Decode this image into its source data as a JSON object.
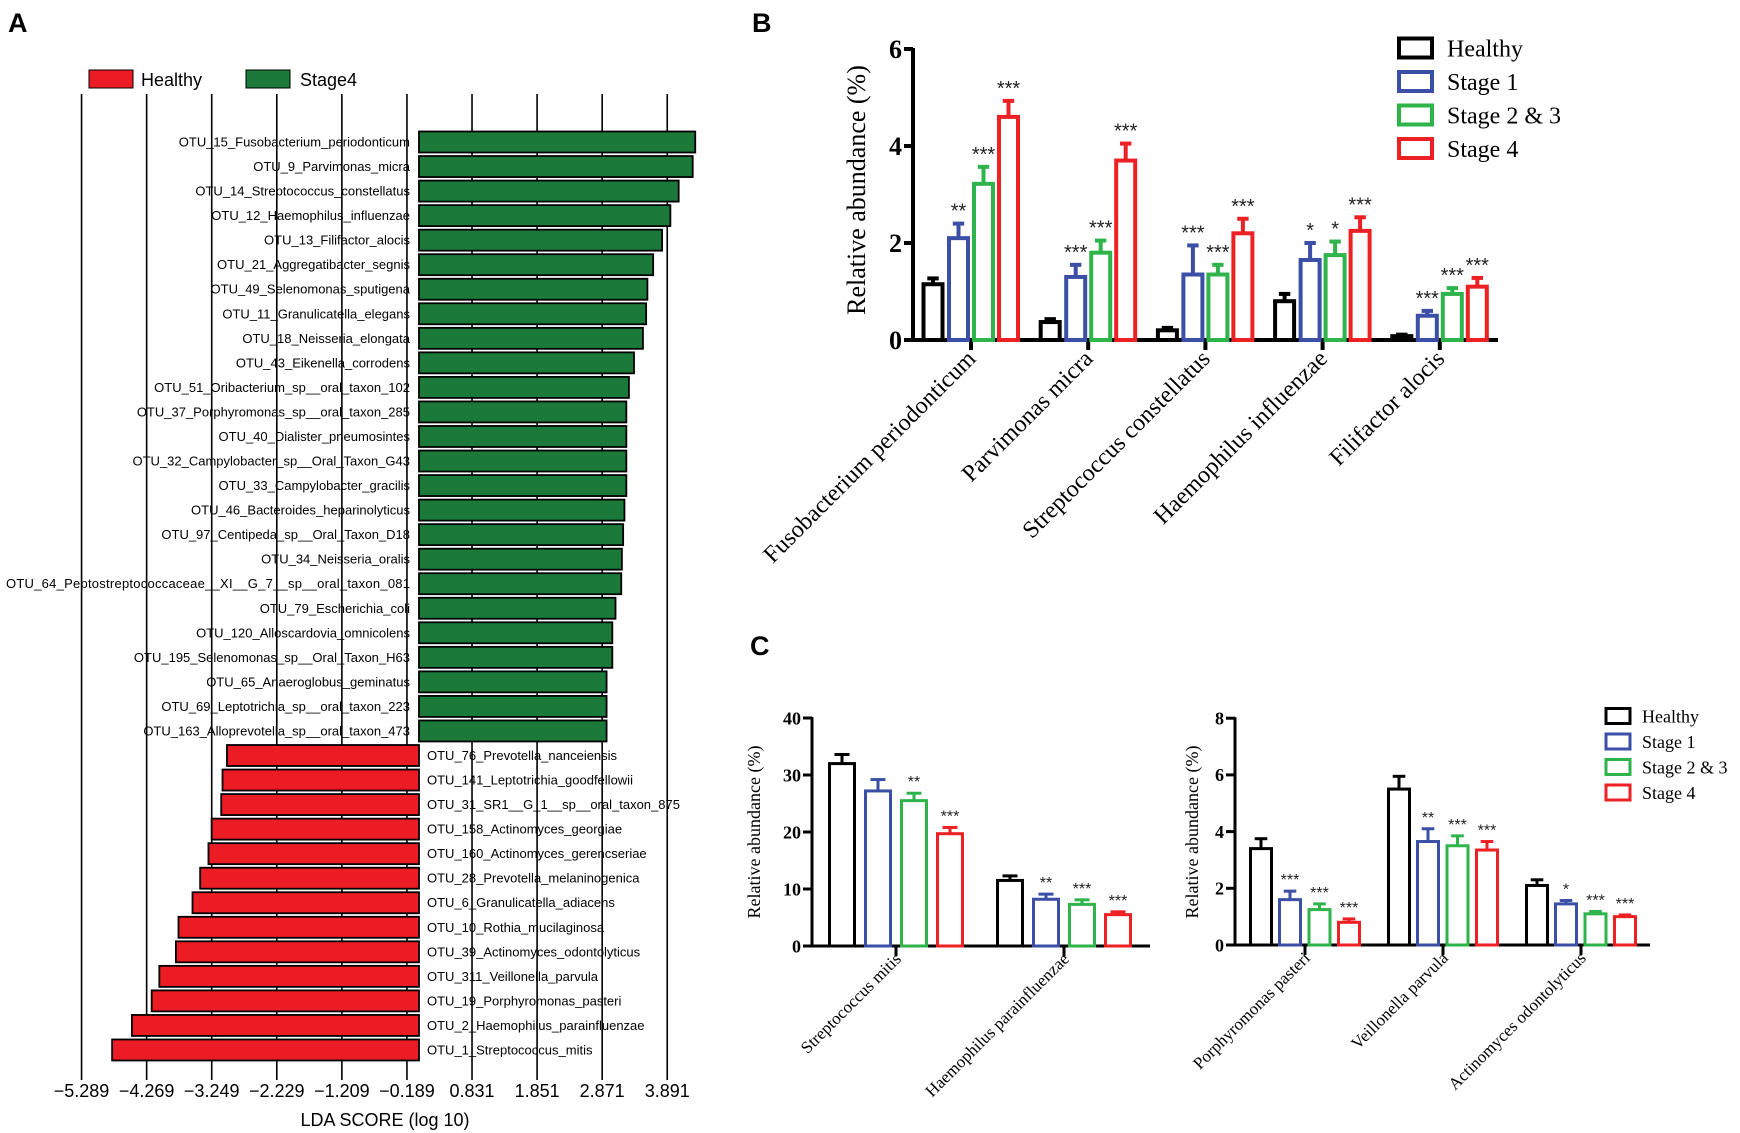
{
  "panels": {
    "a": "A",
    "b": "B",
    "c": "C"
  },
  "colors": {
    "healthy": "#000000",
    "stage1": "#3b4fa6",
    "stage23": "#2fb34b",
    "stage4": "#ed2024",
    "lefse_red": "#ec1c24",
    "lefse_green": "#1b7a3a"
  },
  "chart_data": [
    {
      "panel": "A",
      "type": "bar",
      "orientation": "horizontal",
      "xlabel": "LDA SCORE (log 10)",
      "xticks": [
        "−5.289",
        "−4.269",
        "−3.249",
        "−2.229",
        "−1.209",
        "−0.189",
        "0.831",
        "1.851",
        "2.871",
        "3.891"
      ],
      "xtick_values": [
        -5.289,
        -4.269,
        -3.249,
        -2.229,
        -1.209,
        -0.189,
        0.831,
        1.851,
        2.871,
        3.891
      ],
      "legend": [
        {
          "name": "Healthy",
          "color": "#ec1c24"
        },
        {
          "name": "Stage4",
          "color": "#1b7a3a"
        }
      ],
      "legend_position": "top-left",
      "categories": [
        "OTU_15_Fusobacterium_periodonticum",
        "OTU_9_Parvimonas_micra",
        "OTU_14_Streptococcus_constellatus",
        "OTU_12_Haemophilus_influenzae",
        "OTU_13_Filifactor_alocis",
        "OTU_21_Aggregatibacter_segnis",
        "OTU_49_Selenomonas_sputigena",
        "OTU_11_Granulicatella_elegans",
        "OTU_18_Neisseria_elongata",
        "OTU_43_Eikenella_corrodens",
        "OTU_51_Oribacterium_sp__oral_taxon_102",
        "OTU_37_Porphyromonas_sp__oral_taxon_285",
        "OTU_40_Dialister_pneumosintes",
        "OTU_32_Campylobacter_sp__Oral_Taxon_G43",
        "OTU_33_Campylobacter_gracilis",
        "OTU_46_Bacteroides_heparinolyticus",
        "OTU_97_Centipeda_sp__Oral_Taxon_D18",
        "OTU_34_Neisseria_oralis",
        "OTU_64_Peptostreptococcaceae__XI__G_7__sp__oral_taxon_081",
        "OTU_79_Escherichia_coli",
        "OTU_120_Alloscardovia_omnicolens",
        "OTU_195_Selenomonas_sp__Oral_Taxon_H63",
        "OTU_65_Anaeroglobus_geminatus",
        "OTU_69_Leptotrichia_sp__oral_taxon_223",
        "OTU_163_Alloprevotella_sp__oral_taxon_473",
        "OTU_76_Prevotella_nanceiensis",
        "OTU_141_Leptotrichia_goodfellowii",
        "OTU_31_SR1__G_1__sp__oral_taxon_875",
        "OTU_158_Actinomyces_georgiae",
        "OTU_160_Actinomyces_gerencseriae",
        "OTU_28_Prevotella_melaninogenica",
        "OTU_6_Granulicatella_adiacens",
        "OTU_10_Rothia_mucilaginosa",
        "OTU_39_Actinomyces_odontolyticus",
        "OTU_311_Veillonella_parvula",
        "OTU_19_Porphyromonas_pasteri",
        "OTU_2_Haemophilus_parainfluenzae",
        "OTU_1_Streptococcus_mitis"
      ],
      "values": [
        4.33,
        4.29,
        4.07,
        3.94,
        3.81,
        3.67,
        3.58,
        3.56,
        3.51,
        3.37,
        3.29,
        3.25,
        3.25,
        3.25,
        3.25,
        3.22,
        3.2,
        3.18,
        3.17,
        3.08,
        3.03,
        3.03,
        2.94,
        2.94,
        2.94,
        -3.01,
        -3.08,
        -3.1,
        -3.25,
        -3.3,
        -3.43,
        -3.55,
        -3.77,
        -3.81,
        -4.07,
        -4.19,
        -4.5,
        -4.81
      ]
    },
    {
      "panel": "B",
      "type": "bar",
      "ylabel": "Relative abundance (%)",
      "ylim": [
        0,
        6
      ],
      "yticks": [
        "0",
        "2",
        "4",
        "6"
      ],
      "ytick_values": [
        0,
        2,
        4,
        6
      ],
      "legend_position": "top-right",
      "categories": [
        "Fusobacterium periodonticum",
        "Parvimonas micra",
        "Streptococcus constellatus",
        "Haemophilus influenzae",
        "Filifactor alocis"
      ],
      "series": [
        {
          "name": "Healthy",
          "color": "#000000",
          "values": [
            1.15,
            0.37,
            0.2,
            0.8,
            0.08
          ],
          "errors": [
            0.12,
            0.06,
            0.05,
            0.15,
            0.03
          ],
          "significance": [
            "",
            "",
            "",
            "",
            ""
          ]
        },
        {
          "name": "Stage 1",
          "color": "#3b4fa6",
          "values": [
            2.1,
            1.3,
            1.35,
            1.65,
            0.5
          ],
          "errors": [
            0.3,
            0.25,
            0.6,
            0.35,
            0.1
          ],
          "significance": [
            "**",
            "***",
            "***",
            "*",
            "***"
          ]
        },
        {
          "name": "Stage 2 & 3",
          "color": "#2fb34b",
          "values": [
            3.22,
            1.8,
            1.35,
            1.75,
            0.95
          ],
          "errors": [
            0.35,
            0.25,
            0.2,
            0.28,
            0.12
          ],
          "significance": [
            "***",
            "***",
            "***",
            "*",
            "***"
          ]
        },
        {
          "name": "Stage 4",
          "color": "#ed2024",
          "values": [
            4.6,
            3.7,
            2.2,
            2.25,
            1.1
          ],
          "errors": [
            0.33,
            0.35,
            0.3,
            0.28,
            0.18
          ],
          "significance": [
            "***",
            "***",
            "***",
            "***",
            "***"
          ]
        }
      ]
    },
    {
      "panel": "C-left",
      "type": "bar",
      "ylabel": "Relative abundance (%)",
      "ylim": [
        0,
        40
      ],
      "yticks": [
        "0",
        "10",
        "20",
        "30",
        "40"
      ],
      "ytick_values": [
        0,
        10,
        20,
        30,
        40
      ],
      "categories": [
        "Streptococcus mitis",
        "Haemophilus parainfluenzae"
      ],
      "series": [
        {
          "name": "Healthy",
          "color": "#000000",
          "values": [
            32,
            11.5
          ],
          "errors": [
            1.6,
            0.8
          ],
          "significance": [
            "",
            ""
          ]
        },
        {
          "name": "Stage 1",
          "color": "#3b4fa6",
          "values": [
            27.2,
            8.2
          ],
          "errors": [
            2,
            0.9
          ],
          "significance": [
            "",
            "**"
          ]
        },
        {
          "name": "Stage 2 & 3",
          "color": "#2fb34b",
          "values": [
            25.5,
            7.3
          ],
          "errors": [
            1.3,
            0.8
          ],
          "significance": [
            "**",
            "***"
          ]
        },
        {
          "name": "Stage 4",
          "color": "#ed2024",
          "values": [
            19.7,
            5.5
          ],
          "errors": [
            1.1,
            0.5
          ],
          "significance": [
            "***",
            "***"
          ]
        }
      ]
    },
    {
      "panel": "C-right",
      "type": "bar",
      "ylabel": "Relative abundance (%)",
      "ylim": [
        0,
        8
      ],
      "yticks": [
        "0",
        "2",
        "4",
        "6",
        "8"
      ],
      "ytick_values": [
        0,
        2,
        4,
        6,
        8
      ],
      "legend_position": "top-right",
      "categories": [
        "Porphyromonas pasteri",
        "Veillonella parvula",
        "Actinomyces odontolyticus"
      ],
      "series": [
        {
          "name": "Healthy",
          "color": "#000000",
          "values": [
            3.4,
            5.5,
            2.1
          ],
          "errors": [
            0.35,
            0.45,
            0.2
          ],
          "significance": [
            "",
            "",
            ""
          ]
        },
        {
          "name": "Stage 1",
          "color": "#3b4fa6",
          "values": [
            1.6,
            3.65,
            1.45
          ],
          "errors": [
            0.3,
            0.45,
            0.12
          ],
          "significance": [
            "***",
            "**",
            "*"
          ]
        },
        {
          "name": "Stage 2 & 3",
          "color": "#2fb34b",
          "values": [
            1.25,
            3.5,
            1.1
          ],
          "errors": [
            0.2,
            0.35,
            0.08
          ],
          "significance": [
            "***",
            "***",
            "***"
          ]
        },
        {
          "name": "Stage 4",
          "color": "#ed2024",
          "values": [
            0.8,
            3.35,
            1.0
          ],
          "errors": [
            0.12,
            0.3,
            0.06
          ],
          "significance": [
            "***",
            "***",
            "***"
          ]
        }
      ]
    }
  ]
}
